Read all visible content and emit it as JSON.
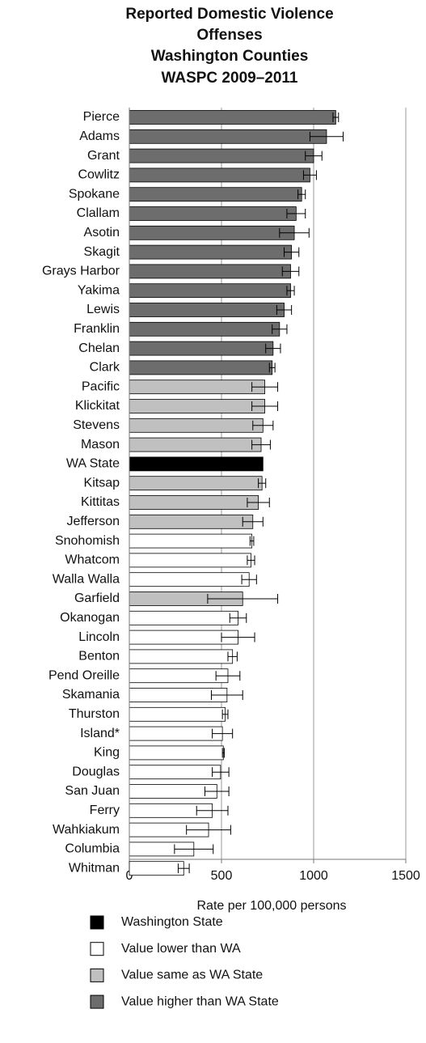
{
  "chart_data": {
    "type": "bar",
    "orientation": "horizontal",
    "title": [
      "Reported Domestic Violence",
      "Offenses",
      "Washington Counties",
      "WASPC 2009–2011"
    ],
    "xlabel": "Rate per 100,000 persons",
    "categories": [
      "Pierce",
      "Adams",
      "Grant",
      "Cowlitz",
      "Spokane",
      "Clallam",
      "Asotin",
      "Skagit",
      "Grays Harbor",
      "Yakima",
      "Lewis",
      "Franklin",
      "Chelan",
      "Clark",
      "Pacific",
      "Klickitat",
      "Stevens",
      "Mason",
      "WA State",
      "Kitsap",
      "Kittitas",
      "Jefferson",
      "Snohomish",
      "Whatcom",
      "Walla Walla",
      "Garfield",
      "Okanogan",
      "Lincoln",
      "Benton",
      "Pend Oreille",
      "Skamania",
      "Thurston",
      "Island*",
      "King",
      "Douglas",
      "San Juan",
      "Ferry",
      "Wahkiakum",
      "Columbia",
      "Whitman"
    ],
    "series": [
      {
        "name": "Washington State",
        "color": "#000000",
        "values": [
          null,
          null,
          null,
          null,
          null,
          null,
          null,
          null,
          null,
          null,
          null,
          null,
          null,
          null,
          null,
          null,
          null,
          null,
          725,
          null,
          null,
          null,
          null,
          null,
          null,
          null,
          null,
          null,
          null,
          null,
          null,
          null,
          null,
          null,
          null,
          null,
          null,
          null,
          null,
          null
        ],
        "errors": [
          null,
          null,
          null,
          null,
          null,
          null,
          null,
          null,
          null,
          null,
          null,
          null,
          null,
          null,
          null,
          null,
          null,
          null,
          null,
          null,
          null,
          null,
          null,
          null,
          null,
          null,
          null,
          null,
          null,
          null,
          null,
          null,
          null,
          null,
          null,
          null,
          null,
          null,
          null,
          null
        ]
      },
      {
        "name": "Value lower than WA",
        "color": "#ffffff",
        "values": [
          null,
          null,
          null,
          null,
          null,
          null,
          null,
          null,
          null,
          null,
          null,
          null,
          null,
          null,
          null,
          null,
          null,
          null,
          null,
          null,
          null,
          null,
          665,
          660,
          650,
          null,
          590,
          590,
          560,
          535,
          530,
          520,
          505,
          510,
          495,
          475,
          450,
          430,
          350,
          295
        ],
        "errors": [
          null,
          null,
          null,
          null,
          null,
          null,
          null,
          null,
          null,
          null,
          null,
          null,
          null,
          null,
          null,
          null,
          null,
          null,
          null,
          null,
          null,
          null,
          10,
          20,
          40,
          null,
          45,
          90,
          25,
          65,
          85,
          15,
          55,
          5,
          45,
          65,
          85,
          120,
          105,
          30
        ]
      },
      {
        "name": "Value same as WA State",
        "color": "#c0c0c0",
        "values": [
          null,
          null,
          null,
          null,
          null,
          null,
          null,
          null,
          null,
          null,
          null,
          null,
          null,
          null,
          735,
          735,
          725,
          715,
          null,
          720,
          700,
          670,
          null,
          null,
          null,
          615,
          null,
          null,
          null,
          null,
          null,
          null,
          null,
          null,
          null,
          null,
          null,
          null,
          null,
          null
        ],
        "errors": [
          null,
          null,
          null,
          null,
          null,
          null,
          null,
          null,
          null,
          null,
          null,
          null,
          null,
          null,
          70,
          70,
          55,
          50,
          null,
          20,
          60,
          55,
          null,
          null,
          null,
          190,
          null,
          null,
          null,
          null,
          null,
          null,
          null,
          null,
          null,
          null,
          null,
          null,
          null,
          null
        ]
      },
      {
        "name": "Value higher than WA State",
        "color": "#6d6d6d",
        "values": [
          1120,
          1070,
          1000,
          980,
          935,
          905,
          895,
          880,
          875,
          875,
          840,
          815,
          780,
          775,
          null,
          null,
          null,
          null,
          null,
          null,
          null,
          null,
          null,
          null,
          null,
          null,
          null,
          null,
          null,
          null,
          null,
          null,
          null,
          null,
          null,
          null,
          null,
          null,
          null,
          null
        ],
        "errors": [
          15,
          90,
          45,
          35,
          20,
          50,
          80,
          40,
          45,
          20,
          40,
          40,
          40,
          15,
          null,
          null,
          null,
          null,
          null,
          null,
          null,
          null,
          null,
          null,
          null,
          null,
          null,
          null,
          null,
          null,
          null,
          null,
          null,
          null,
          null,
          null,
          null,
          null,
          null,
          null
        ]
      }
    ],
    "xlim": [
      0,
      1500
    ],
    "xticks": [
      0,
      500,
      1000,
      1500
    ],
    "grid": true
  }
}
